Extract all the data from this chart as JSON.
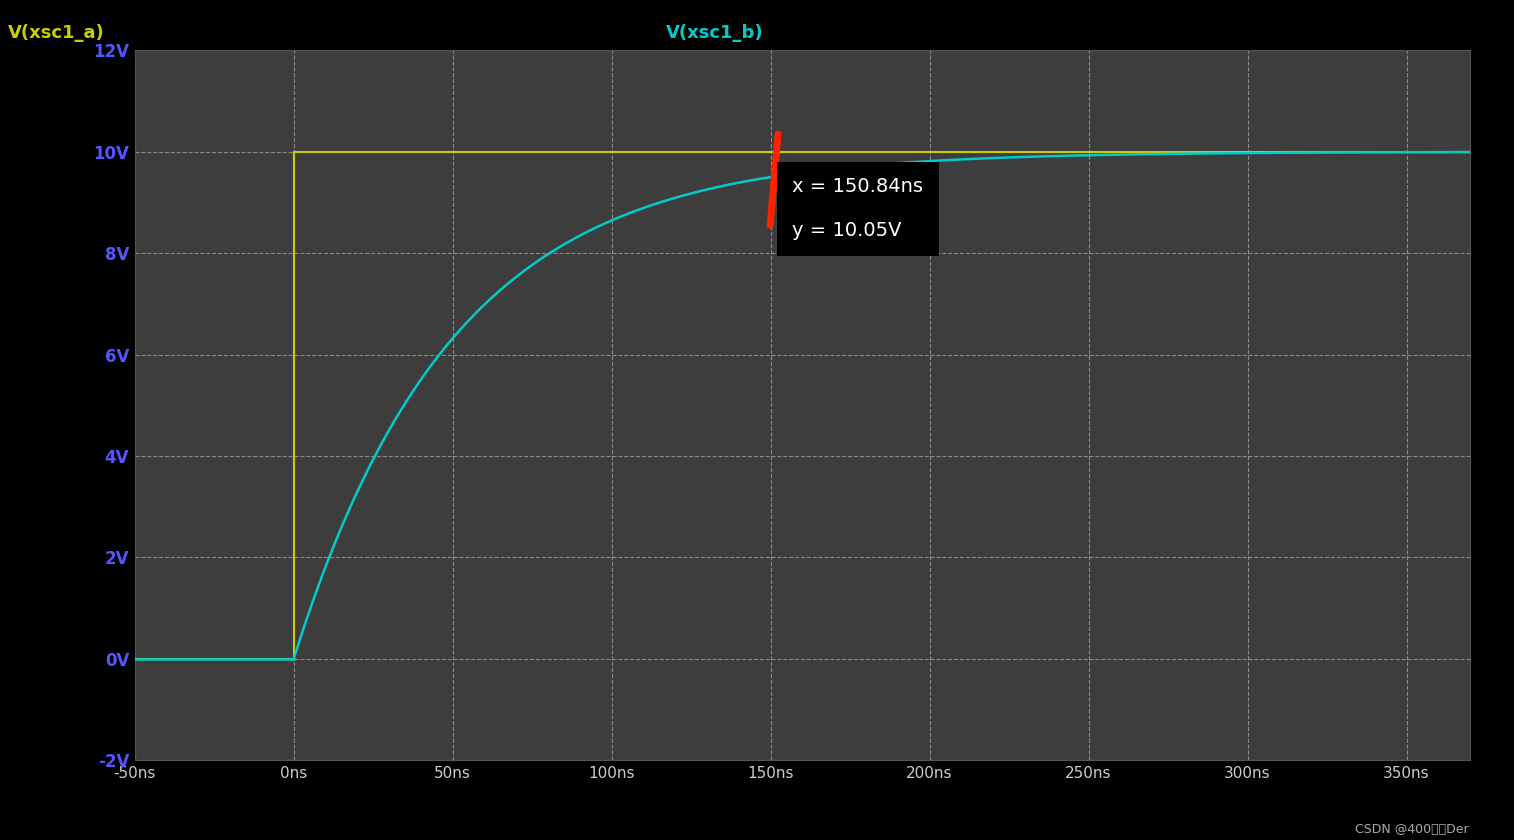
{
  "background_color": "#000000",
  "plot_bg_color": "#3d3d3d",
  "grid_color": "#cccccc",
  "title_a": "V(xsc1_a)",
  "title_b": "V(xsc1_b)",
  "title_a_color": "#cccc00",
  "title_b_color": "#00cccc",
  "ylabel_color": "#5555ff",
  "xtick_color": "#cccccc",
  "xmin": -50,
  "xmax": 370,
  "ymin": -2,
  "ymax": 12,
  "xticks": [
    -50,
    0,
    50,
    100,
    150,
    200,
    250,
    300,
    350
  ],
  "yticks": [
    -2,
    0,
    2,
    4,
    6,
    8,
    10,
    12
  ],
  "yellow_color": "#cccc00",
  "cyan_color": "#00cccc",
  "cyan_tau_ns": 50,
  "cyan_asymptote": 10.0,
  "marker_x_ns": 150.84,
  "marker_y_V": 10.05,
  "tooltip_x_label": "x = 150.84ns",
  "tooltip_y_label": "y = 10.05V",
  "tooltip_bg": "#000000",
  "tooltip_text_color": "#ffffff",
  "marker_line_color": "#ff2200",
  "watermark": "CSDN @400是个Der"
}
